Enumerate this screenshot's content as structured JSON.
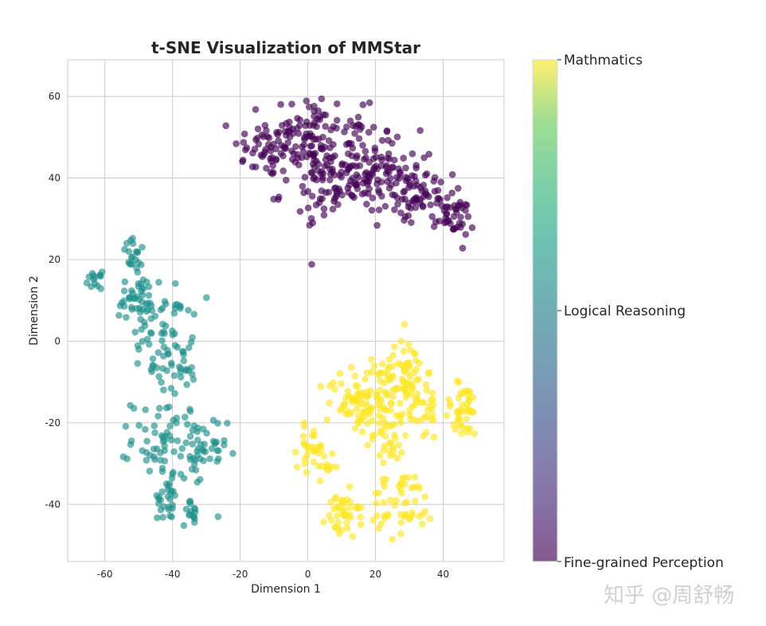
{
  "chart_data": {
    "type": "scatter",
    "title": "t-SNE Visualization of MMStar",
    "xlabel": "Dimension 1",
    "ylabel": "Dimension 2",
    "xlim": [
      -71,
      58
    ],
    "ylim": [
      -54,
      69
    ],
    "xticks": [
      -60,
      -40,
      -20,
      0,
      20,
      40
    ],
    "yticks": [
      -40,
      -20,
      0,
      20,
      40,
      60
    ],
    "grid": true,
    "colorbar": {
      "labels": [
        "Mathmatics",
        "Logical Reasoning",
        "Fine-grained Perception"
      ],
      "colors": [
        "#fde725",
        "#21918c",
        "#440154"
      ]
    },
    "series": [
      {
        "name": "Fine-grained Perception",
        "color": "#440154",
        "clusters": [
          {
            "cx": -12,
            "cy": 47,
            "sx": 5,
            "sy": 3.5,
            "n": 50
          },
          {
            "cx": 0,
            "cy": 50,
            "sx": 6,
            "sy": 6,
            "n": 90
          },
          {
            "cx": 12,
            "cy": 44,
            "sx": 7,
            "sy": 6,
            "n": 100
          },
          {
            "cx": 25,
            "cy": 40,
            "sx": 6,
            "sy": 5,
            "n": 80
          },
          {
            "cx": 35,
            "cy": 35,
            "sx": 4,
            "sy": 3,
            "n": 45
          },
          {
            "cx": 43,
            "cy": 30,
            "sx": 3,
            "sy": 2.5,
            "n": 35
          },
          {
            "cx": 8,
            "cy": 36,
            "sx": 8,
            "sy": 3,
            "n": 40
          }
        ]
      },
      {
        "name": "Logical Reasoning",
        "color": "#21918c",
        "clusters": [
          {
            "cx": -63,
            "cy": 15,
            "sx": 1,
            "sy": 1,
            "n": 14
          },
          {
            "cx": -51,
            "cy": 21,
            "sx": 2,
            "sy": 2,
            "n": 20
          },
          {
            "cx": -50,
            "cy": 9,
            "sx": 4,
            "sy": 4,
            "n": 45
          },
          {
            "cx": -42,
            "cy": 4,
            "sx": 4,
            "sy": 5,
            "n": 50
          },
          {
            "cx": -40,
            "cy": -7,
            "sx": 4,
            "sy": 3,
            "n": 30
          },
          {
            "cx": -42,
            "cy": -24,
            "sx": 5,
            "sy": 5,
            "n": 60
          },
          {
            "cx": -32,
            "cy": -28,
            "sx": 4,
            "sy": 5,
            "n": 45
          },
          {
            "cx": -42,
            "cy": -39,
            "sx": 2.5,
            "sy": 2.5,
            "n": 25
          },
          {
            "cx": -34,
            "cy": -42,
            "sx": 1.5,
            "sy": 1.5,
            "n": 15
          }
        ]
      },
      {
        "name": "Mathmatics",
        "color": "#fde725",
        "clusters": [
          {
            "cx": 1,
            "cy": -26,
            "sx": 2,
            "sy": 2.5,
            "n": 30
          },
          {
            "cx": 6,
            "cy": -31,
            "sx": 1.5,
            "sy": 1.5,
            "n": 10
          },
          {
            "cx": 10,
            "cy": -43,
            "sx": 2.5,
            "sy": 3,
            "n": 40
          },
          {
            "cx": 14,
            "cy": -15,
            "sx": 4,
            "sy": 4,
            "n": 60
          },
          {
            "cx": 22,
            "cy": -13,
            "sx": 4,
            "sy": 5,
            "n": 55
          },
          {
            "cx": 29,
            "cy": -7,
            "sx": 3,
            "sy": 4,
            "n": 45
          },
          {
            "cx": 33,
            "cy": -16,
            "sx": 3,
            "sy": 4,
            "n": 40
          },
          {
            "cx": 46,
            "cy": -17,
            "sx": 3,
            "sy": 3.5,
            "n": 45
          },
          {
            "cx": 28,
            "cy": -40,
            "sx": 5,
            "sy": 4,
            "n": 55
          },
          {
            "cx": 24,
            "cy": -24,
            "sx": 3,
            "sy": 3,
            "n": 25
          }
        ]
      }
    ]
  },
  "watermark": "知乎 @周舒畅"
}
